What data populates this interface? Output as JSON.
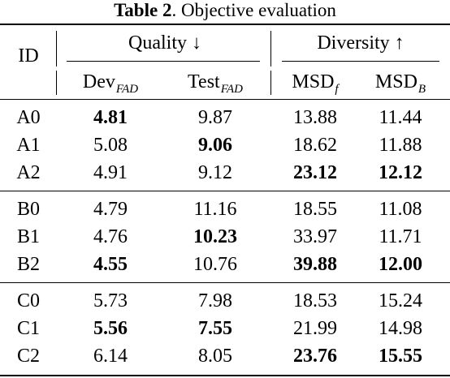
{
  "caption": {
    "label": "Table 2",
    "text": ". Objective evaluation"
  },
  "header": {
    "id": "ID",
    "quality": "Quality ↓",
    "diversity": "Diversity ↑",
    "columns": [
      {
        "base": "Dev",
        "sub": "FAD"
      },
      {
        "base": "Test",
        "sub": "FAD"
      },
      {
        "base": "MSD",
        "sub": "f"
      },
      {
        "base": "MSD",
        "sub": "B"
      }
    ]
  },
  "groups": [
    {
      "rows": [
        {
          "id": "A0",
          "values": [
            "4.81",
            "9.87",
            "13.88",
            "11.44"
          ],
          "bold": [
            true,
            false,
            false,
            false
          ]
        },
        {
          "id": "A1",
          "values": [
            "5.08",
            "9.06",
            "18.62",
            "11.88"
          ],
          "bold": [
            false,
            true,
            false,
            false
          ]
        },
        {
          "id": "A2",
          "values": [
            "4.91",
            "9.12",
            "23.12",
            "12.12"
          ],
          "bold": [
            false,
            false,
            true,
            true
          ]
        }
      ]
    },
    {
      "rows": [
        {
          "id": "B0",
          "values": [
            "4.79",
            "11.16",
            "18.55",
            "11.08"
          ],
          "bold": [
            false,
            false,
            false,
            false
          ]
        },
        {
          "id": "B1",
          "values": [
            "4.76",
            "10.23",
            "33.97",
            "11.71"
          ],
          "bold": [
            false,
            true,
            false,
            false
          ]
        },
        {
          "id": "B2",
          "values": [
            "4.55",
            "10.76",
            "39.88",
            "12.00"
          ],
          "bold": [
            true,
            false,
            true,
            true
          ]
        }
      ]
    },
    {
      "rows": [
        {
          "id": "C0",
          "values": [
            "5.73",
            "7.98",
            "18.53",
            "15.24"
          ],
          "bold": [
            false,
            false,
            false,
            false
          ]
        },
        {
          "id": "C1",
          "values": [
            "5.56",
            "7.55",
            "21.99",
            "14.98"
          ],
          "bold": [
            true,
            true,
            false,
            false
          ]
        },
        {
          "id": "C2",
          "values": [
            "6.14",
            "8.05",
            "23.76",
            "15.55"
          ],
          "bold": [
            false,
            false,
            true,
            true
          ]
        }
      ]
    }
  ]
}
